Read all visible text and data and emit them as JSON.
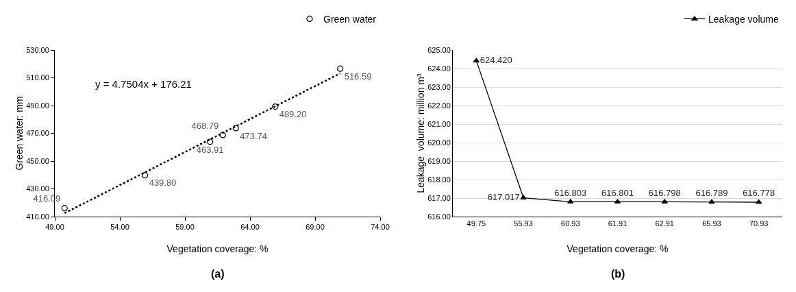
{
  "chart_data": [
    {
      "type": "scatter",
      "xlabel": "Vegetation coverage: %",
      "ylabel": "Green water: mm",
      "x": [
        49.75,
        55.93,
        60.93,
        61.91,
        62.91,
        65.93,
        70.93
      ],
      "series": [
        {
          "name": "Green water",
          "color": "#000000",
          "values": [
            416.09,
            439.8,
            463.91,
            468.79,
            473.74,
            489.2,
            516.59
          ],
          "marker": "circle",
          "value_labels": [
            "416.09",
            "439.80",
            "463.91",
            "468.79",
            "473.74",
            "489.20",
            "516.59"
          ]
        },
        {
          "type": "line",
          "color": "#000000",
          "x": [
            49.75,
            70.93
          ],
          "values": [
            412.5,
            513.2
          ],
          "line_style": "dotted",
          "marker": "none"
        }
      ],
      "xlim": [
        49,
        74
      ],
      "xticks": [
        {
          "value": 49,
          "label": "49.00"
        },
        {
          "value": 54,
          "label": "54.00"
        },
        {
          "value": 59,
          "label": "59.00"
        },
        {
          "value": 64,
          "label": "64.00"
        },
        {
          "value": 69,
          "label": "69.00"
        },
        {
          "value": 74,
          "label": "74.00"
        }
      ],
      "ylim": [
        410,
        530
      ],
      "yticks": [
        {
          "value": 410,
          "label": "410.00"
        },
        {
          "value": 430,
          "label": "430.00"
        },
        {
          "value": 450,
          "label": "450.00"
        },
        {
          "value": 470,
          "label": "470.00"
        },
        {
          "value": 490,
          "label": "490.00"
        },
        {
          "value": 510,
          "label": "510.00"
        },
        {
          "value": 530,
          "label": "530.00"
        }
      ],
      "grid": false,
      "legend": "top right",
      "annotations": [
        "y = 4.7504x + 176.21",
        "(a)"
      ]
    },
    {
      "type": "line",
      "xlabel": "Vegetation coverage: %",
      "ylabel": "Leakage  volume: million m³",
      "categories": [
        "49.75",
        "55.93",
        "60.93",
        "61.91",
        "62.91",
        "65.93",
        "70.93"
      ],
      "series": [
        {
          "name": "Leakage volume",
          "color": "#000000",
          "values": [
            624.42,
            617.017,
            616.803,
            616.801,
            616.798,
            616.789,
            616.778
          ],
          "value_labels": [
            "624.420",
            "617.017",
            "616.803",
            "616.801",
            "616.798",
            "616.789",
            "616.778"
          ]
        }
      ],
      "marker": "triangle",
      "line_style": "solid",
      "ylim": [
        616,
        625
      ],
      "yticks": [
        {
          "value": 616,
          "label": "616.00"
        },
        {
          "value": 617,
          "label": "617.00"
        },
        {
          "value": 618,
          "label": "618.00"
        },
        {
          "value": 619,
          "label": "619.00"
        },
        {
          "value": 620,
          "label": "620.00"
        },
        {
          "value": 621,
          "label": "621.00"
        },
        {
          "value": 622,
          "label": "622.00"
        },
        {
          "value": 623,
          "label": "623.00"
        },
        {
          "value": 624,
          "label": "624.00"
        },
        {
          "value": 625,
          "label": "625.00"
        }
      ],
      "grid": "y",
      "legend": "top right",
      "annotations": [
        "(b)"
      ]
    }
  ]
}
